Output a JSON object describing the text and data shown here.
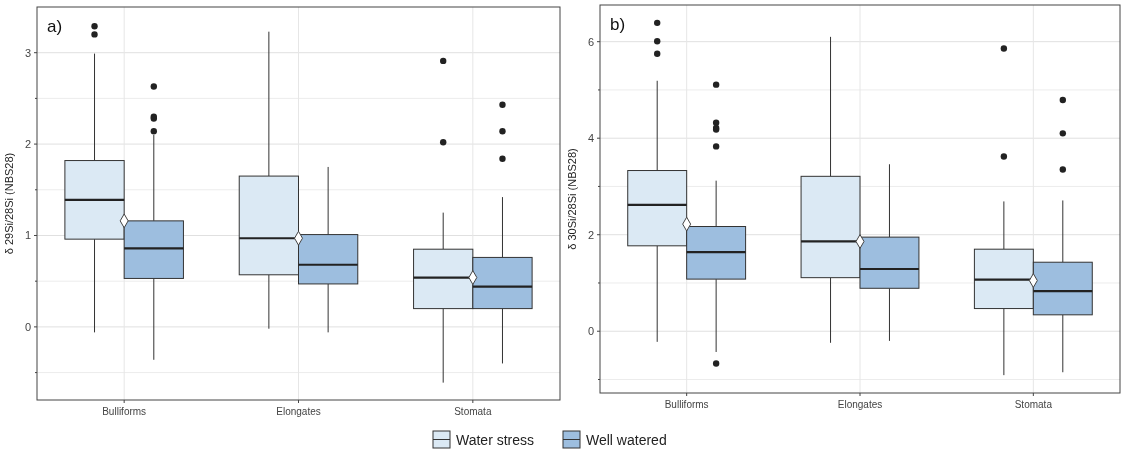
{
  "chart_data": [
    {
      "type": "box",
      "title": "a)",
      "ylabel": "δ 29Si/28Si (NBS28)",
      "categories": [
        "Bulliforms",
        "Elongates",
        "Stomata"
      ],
      "ylim": [
        -0.8,
        3.5
      ],
      "yticks": [
        {
          "value": -0.5,
          "label": null
        },
        0,
        {
          "value": 0.5,
          "label": null
        },
        1,
        {
          "value": 1.5,
          "label": null
        },
        2,
        {
          "value": 2.5,
          "label": null
        },
        3
      ],
      "grid": true,
      "legend": "bottom",
      "series": [
        {
          "name": "Water stress",
          "color": "#dbe9f4",
          "boxes": [
            {
              "low": -0.06,
              "q1": 0.96,
              "median": 1.39,
              "q3": 1.82,
              "high": 2.99,
              "outliers": [
                3.29,
                3.2
              ]
            },
            {
              "low": -0.02,
              "q1": 0.57,
              "median": 0.97,
              "q3": 1.65,
              "high": 3.23
            },
            {
              "low": -0.61,
              "q1": 0.2,
              "median": 0.54,
              "q3": 0.85,
              "high": 1.25,
              "outliers": [
                2.91,
                2.02
              ]
            }
          ]
        },
        {
          "name": "Well watered",
          "color": "#9dbedf",
          "boxes": [
            {
              "low": -0.36,
              "q1": 0.53,
              "median": 0.86,
              "q3": 1.16,
              "high": 2.1,
              "outliers": [
                2.63,
                2.3,
                2.28,
                2.14
              ]
            },
            {
              "low": -0.06,
              "q1": 0.47,
              "median": 0.68,
              "q3": 1.01,
              "high": 1.75
            },
            {
              "low": -0.4,
              "q1": 0.2,
              "median": 0.44,
              "q3": 0.76,
              "high": 1.42,
              "outliers": [
                2.43,
                2.14,
                1.84
              ]
            }
          ]
        },
        {
          "type": "scatter",
          "marker": "diamond",
          "color": "#ffffff",
          "x": [
            "Bulliforms",
            "Elongates",
            "Stomata"
          ],
          "values": [
            1.16,
            0.97,
            0.54
          ]
        }
      ]
    },
    {
      "type": "box",
      "title": "b)",
      "ylabel": "δ 30Si/28Si (NBS28)",
      "categories": [
        "Bulliforms",
        "Elongates",
        "Stomata"
      ],
      "ylim": [
        -1.28,
        6.76
      ],
      "yticks": [
        {
          "value": -1,
          "label": null
        },
        0,
        {
          "value": 1,
          "label": null
        },
        2,
        {
          "value": 3,
          "label": null
        },
        4,
        {
          "value": 5,
          "label": null
        },
        6
      ],
      "grid": true,
      "legend": "bottom",
      "series": [
        {
          "name": "Water stress",
          "color": "#dbe9f4",
          "boxes": [
            {
              "low": -0.22,
              "q1": 1.77,
              "median": 2.62,
              "q3": 3.33,
              "high": 5.19,
              "outliers": [
                6.39,
                6.01,
                5.75
              ]
            },
            {
              "low": -0.24,
              "q1": 1.11,
              "median": 1.86,
              "q3": 3.21,
              "high": 6.1
            },
            {
              "low": -0.91,
              "q1": 0.47,
              "median": 1.07,
              "q3": 1.7,
              "high": 2.69,
              "outliers": [
                5.86,
                3.62
              ]
            }
          ]
        },
        {
          "name": "Well watered",
          "color": "#9dbedf",
          "boxes": [
            {
              "low": -0.43,
              "q1": 1.08,
              "median": 1.64,
              "q3": 2.17,
              "high": 3.12,
              "outliers": [
                5.11,
                4.32,
                4.21,
                4.18,
                3.83,
                -0.67
              ]
            },
            {
              "low": -0.2,
              "q1": 0.89,
              "median": 1.29,
              "q3": 1.95,
              "high": 3.46
            },
            {
              "low": -0.85,
              "q1": 0.34,
              "median": 0.83,
              "q3": 1.43,
              "high": 2.71,
              "outliers": [
                4.79,
                4.1,
                3.35
              ]
            }
          ]
        },
        {
          "type": "scatter",
          "marker": "diamond",
          "color": "#ffffff",
          "x": [
            "Bulliforms",
            "Elongates",
            "Stomata"
          ],
          "values": [
            2.22,
            1.86,
            1.05
          ]
        }
      ]
    }
  ]
}
